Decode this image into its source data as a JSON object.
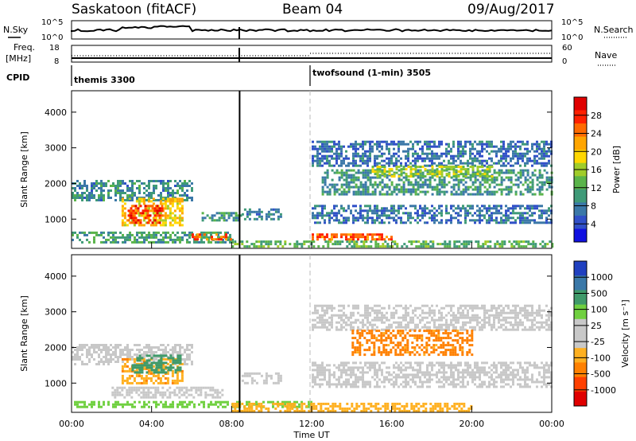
{
  "header": {
    "station": "Saskatoon (fitACF)",
    "beam": "Beam 04",
    "date": "09/Aug/2017"
  },
  "panels": {
    "nsky": {
      "label": "N.Sky",
      "right_label": "N.Search",
      "ticks_left": [
        "10^5",
        "10^0"
      ],
      "ticks_right": [
        "10^5",
        "10^0"
      ]
    },
    "freq": {
      "label_top": "Freq.",
      "label_bottom": "[MHz]",
      "right_label": "Nave",
      "ticks_left": [
        "18",
        "8"
      ],
      "ticks_right": [
        "60",
        "0"
      ]
    },
    "cpid": {
      "label": "CPID",
      "modes": [
        {
          "name": "themis 3300",
          "start": "00:00",
          "end": "12:00"
        },
        {
          "name": "twofsound (1-min) 3505",
          "start": "12:00",
          "end": "24:00"
        }
      ]
    }
  },
  "axes": {
    "x_ticks": [
      "00:00",
      "04:00",
      "08:00",
      "12:00",
      "16:00",
      "20:00",
      "00:00"
    ],
    "x_label": "Time UT",
    "y_label": "Slant Range [km]",
    "y_ticks": [
      "1000",
      "2000",
      "3000",
      "4000"
    ],
    "y_range": [
      180,
      4600
    ]
  },
  "colors": {
    "power": [
      "#1010e0",
      "#3050c8",
      "#3b78a8",
      "#3f9a78",
      "#5ab44a",
      "#a0cc2a",
      "#ffd700",
      "#ffa500",
      "#ff6a00",
      "#ff2000",
      "#e00000"
    ],
    "velocity": [
      "#e00000",
      "#ff4000",
      "#ff8000",
      "#ffb020",
      "#c8c8c8",
      "#c8c8c8",
      "#70d040",
      "#3f9a6a",
      "#3a78a8",
      "#2040c0"
    ]
  },
  "chart_data": [
    {
      "type": "heatmap",
      "title": "",
      "xlabel": "",
      "ylabel": "Slant Range [km]",
      "colorbar_label": "Power [dB]",
      "colorbar_ticks": [
        "4",
        "8",
        "12",
        "16",
        "20",
        "24",
        "28"
      ],
      "colorbar_range": [
        0,
        32
      ],
      "x_unit": "hours UT",
      "xlim": [
        0,
        24
      ],
      "ylim": [
        180,
        4600
      ],
      "regions": [
        {
          "t0": 0.0,
          "t1": 6.0,
          "r0": 1500,
          "r1": 2100,
          "value": 8
        },
        {
          "t0": 2.5,
          "t1": 5.5,
          "r0": 800,
          "r1": 1600,
          "value": 20
        },
        {
          "t0": 2.8,
          "t1": 4.5,
          "r0": 900,
          "r1": 1400,
          "value": 28
        },
        {
          "t0": 0.0,
          "t1": 8.0,
          "r0": 350,
          "r1": 650,
          "value": 10
        },
        {
          "t0": 6.0,
          "t1": 8.0,
          "r0": 400,
          "r1": 600,
          "value": 26
        },
        {
          "t0": 6.5,
          "t1": 8.5,
          "r0": 950,
          "r1": 1200,
          "value": 9
        },
        {
          "t0": 8.5,
          "t1": 10.5,
          "r0": 1000,
          "r1": 1300,
          "value": 7
        },
        {
          "t0": 12.0,
          "t1": 24.0,
          "r0": 2500,
          "r1": 3200,
          "value": 6
        },
        {
          "t0": 12.5,
          "t1": 24.0,
          "r0": 1700,
          "r1": 2400,
          "value": 9
        },
        {
          "t0": 15.0,
          "t1": 21.0,
          "r0": 2200,
          "r1": 2500,
          "value": 16
        },
        {
          "t0": 12.0,
          "t1": 24.0,
          "r0": 900,
          "r1": 1400,
          "value": 6
        },
        {
          "t0": 12.0,
          "t1": 16.0,
          "r0": 400,
          "r1": 600,
          "value": 26
        },
        {
          "t0": 8.0,
          "t1": 24.0,
          "r0": 200,
          "r1": 400,
          "value": 12
        }
      ]
    },
    {
      "type": "heatmap",
      "title": "",
      "xlabel": "Time UT",
      "ylabel": "Slant Range [km]",
      "colorbar_label": "Velocity [m s⁻¹]",
      "colorbar_ticks": [
        "-1000",
        "-500",
        "-100",
        "-25",
        "25",
        "100",
        "500",
        "1000"
      ],
      "x_unit": "hours UT",
      "xlim": [
        0,
        24
      ],
      "ylim": [
        180,
        4600
      ],
      "regions": [
        {
          "t0": 0.0,
          "t1": 6.0,
          "r0": 1500,
          "r1": 2100,
          "value": 0
        },
        {
          "t0": 2.5,
          "t1": 5.5,
          "r0": 1000,
          "r1": 1700,
          "value": -80
        },
        {
          "t0": 3.0,
          "t1": 5.5,
          "r0": 1300,
          "r1": 1800,
          "value": 300
        },
        {
          "t0": 2.0,
          "t1": 7.5,
          "r0": 600,
          "r1": 900,
          "value": 0
        },
        {
          "t0": 0.0,
          "t1": 12.0,
          "r0": 300,
          "r1": 500,
          "value": 60
        },
        {
          "t0": 8.5,
          "t1": 10.5,
          "r0": 1000,
          "r1": 1300,
          "value": 0
        },
        {
          "t0": 12.0,
          "t1": 24.0,
          "r0": 2500,
          "r1": 3200,
          "value": 0
        },
        {
          "t0": 14.0,
          "t1": 20.0,
          "r0": 1800,
          "r1": 2500,
          "value": -150
        },
        {
          "t0": 12.0,
          "t1": 24.0,
          "r0": 900,
          "r1": 1600,
          "value": 0
        },
        {
          "t0": 8.0,
          "t1": 20.0,
          "r0": 200,
          "r1": 450,
          "value": -60
        }
      ]
    }
  ]
}
